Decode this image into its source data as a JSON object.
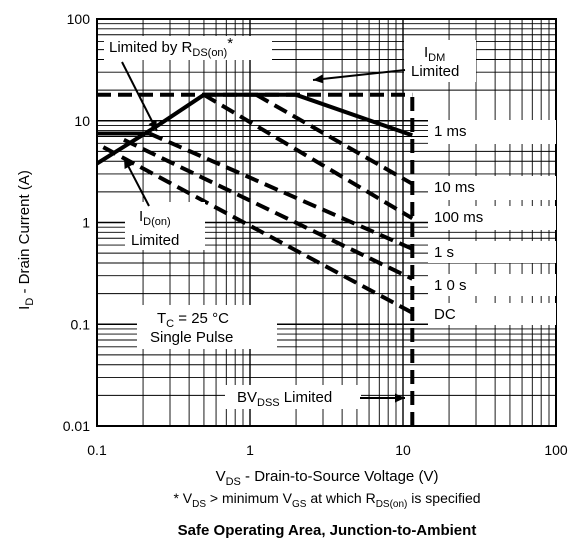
{
  "chart_data": {
    "type": "line",
    "title": "Safe Operating Area, Junction-to-Ambient",
    "xlabel": "V_DS - Drain-to-Source Voltage (V)",
    "ylabel": "I_D - Drain Current (A)",
    "footnote": "* V_DS > minimum V_GS at which R_DS(on) is specified",
    "x_scale": "log",
    "y_scale": "log",
    "xlim": [
      0.1,
      100
    ],
    "ylim": [
      0.01,
      100
    ],
    "x_ticks": [
      0.1,
      1,
      10,
      100
    ],
    "x_tick_labels": [
      "0.1",
      "1",
      "10",
      "100"
    ],
    "y_ticks": [
      0.01,
      0.1,
      1,
      10,
      100
    ],
    "y_tick_labels": [
      "0.01",
      "0.1",
      "1",
      "10",
      "100"
    ],
    "grid": true,
    "series": [
      {
        "name": "R_DS(on) Limit",
        "style": "solid",
        "x": [
          0.1,
          0.25,
          0.5,
          1.1,
          2.0
        ],
        "y": [
          3.8,
          9,
          18,
          18,
          18
        ]
      },
      {
        "name": "I_DM Limited",
        "style": "dashed",
        "x": [
          0.1,
          11.5
        ],
        "y": [
          18,
          18
        ]
      },
      {
        "name": "DC Limit",
        "style": "solid",
        "x": [
          0.1,
          0.22
        ],
        "y": [
          7.5,
          7.5
        ]
      },
      {
        "name": "1 ms",
        "style": "solid",
        "x": [
          2.0,
          11.5
        ],
        "y": [
          18,
          7.2
        ]
      },
      {
        "name": "10 ms",
        "style": "dashed",
        "x": [
          1.1,
          11.5
        ],
        "y": [
          18,
          2.4
        ]
      },
      {
        "name": "100 ms",
        "style": "dashed",
        "x": [
          0.5,
          11.5
        ],
        "y": [
          18,
          1.1
        ]
      },
      {
        "name": "1 s",
        "style": "dashed",
        "x": [
          0.22,
          11.5
        ],
        "y": [
          7.5,
          0.55
        ]
      },
      {
        "name": "10 s",
        "style": "dashed",
        "x": [
          0.15,
          11.5
        ],
        "y": [
          6.5,
          0.28
        ]
      },
      {
        "name": "DC",
        "style": "dashed",
        "x": [
          0.11,
          11.5
        ],
        "y": [
          5.5,
          0.13
        ]
      },
      {
        "name": "BV_DSS Limited",
        "style": "dashed",
        "x": [
          11.5,
          11.5
        ],
        "y": [
          0.01,
          18
        ]
      }
    ],
    "annotations": {
      "limited_by_rds_prefix": "Limited by R",
      "limited_by_rds_sub": "DS(on)",
      "limited_by_rds_suffix": "*",
      "idm_main": "I",
      "idm_sub": "DM",
      "idm_second": "Limited",
      "idon_main": "I",
      "idon_sub": "D(on)",
      "idon_second": "Limited",
      "tc_main": "T",
      "tc_sub": "C",
      "tc_value": " = 25  °C",
      "single_pulse": "Single Pulse",
      "bvdss_main": "BV",
      "bvdss_sub": "DSS",
      "bvdss_suffix": " Limited",
      "label_1ms": "1 ms",
      "label_10ms": "10 ms",
      "label_100ms": "100 ms",
      "label_1s": "1 s",
      "label_10s": "1 0  s",
      "label_dc": "DC"
    },
    "text": {
      "xlabel_v": "V",
      "xlabel_sub": "DS",
      "xlabel_rest": " - Drain-to-Source Voltage (V)",
      "ylabel_i": "I",
      "ylabel_sub": "D",
      "ylabel_rest": " - Drain Current (A)",
      "foot_star": "* V",
      "foot_ds": "DS",
      "foot_mid": " > minimum V",
      "foot_gs": "GS",
      "foot_at": " at which R",
      "foot_dson": "DS(on)",
      "foot_end": " is specified"
    },
    "colors": {
      "line": "#000000",
      "grid": "#000000",
      "background": "#ffffff"
    }
  }
}
